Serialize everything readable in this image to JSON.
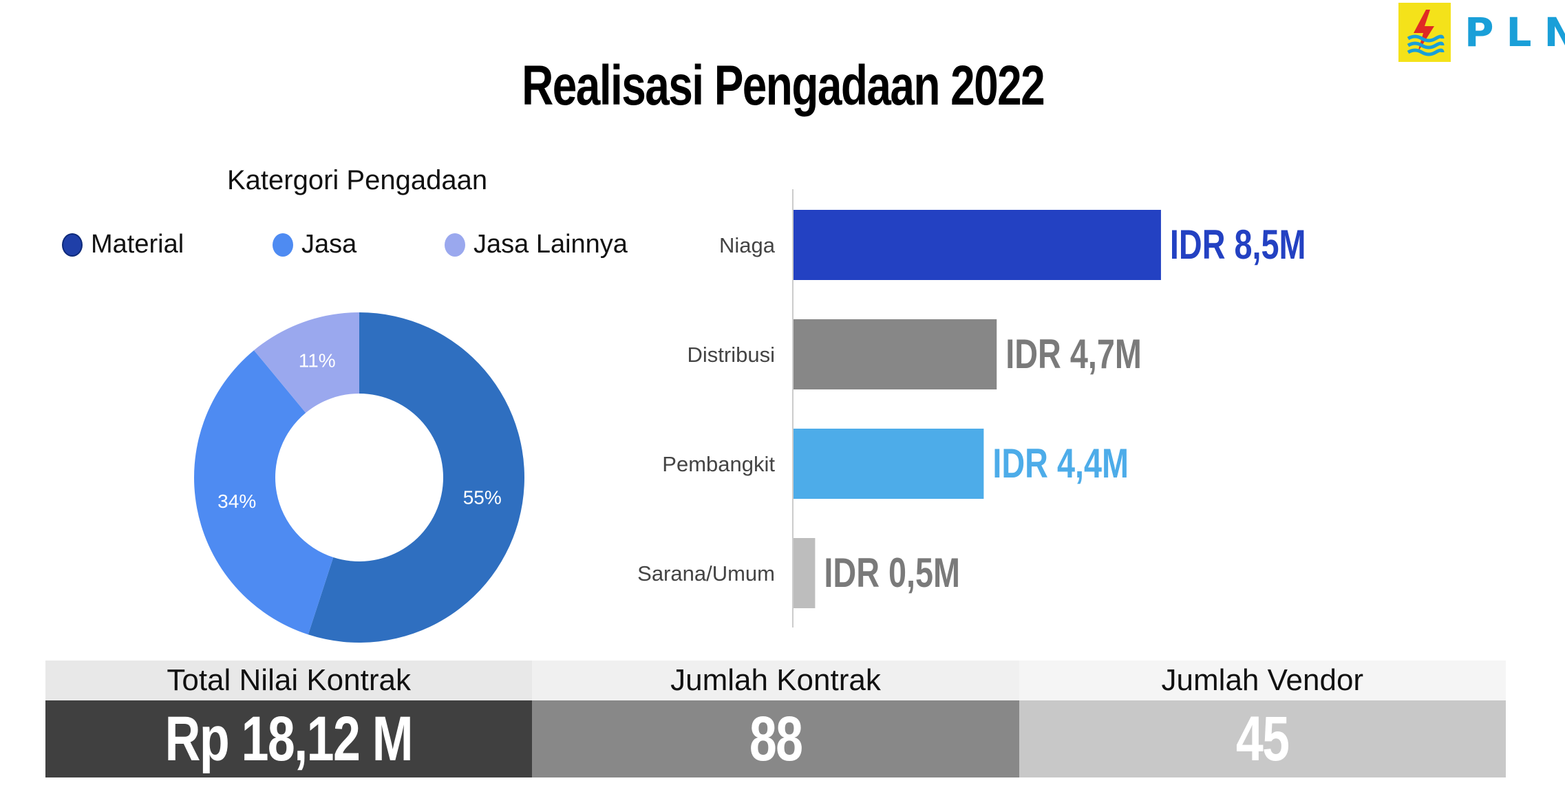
{
  "brand": {
    "logo_text": "PLN",
    "logo_bg": "#f4e21a",
    "text_color": "#1a9fd8"
  },
  "title": "Realisasi Pengadaan 2022",
  "chart_data": [
    {
      "type": "pie",
      "title": "Katergori Pengadaan",
      "legend_position": "top",
      "categories": [
        "Material",
        "Jasa",
        "Jasa Lainnya"
      ],
      "values": [
        55,
        34,
        11
      ],
      "labels": [
        "55%",
        "34%",
        "11%"
      ],
      "colors": [
        "#2f6fc0",
        "#4e8bf2",
        "#9aa8ee"
      ],
      "legend_colors": [
        "#1f3fa8",
        "#4e8bf2",
        "#9aa8ee"
      ]
    },
    {
      "type": "bar",
      "orientation": "horizontal",
      "categories": [
        "Niaga",
        "Distribusi",
        "Pembangkit",
        "Sarana/Umum"
      ],
      "values": [
        8.5,
        4.7,
        4.4,
        0.5
      ],
      "labels": [
        "IDR 8,5M",
        "IDR 4,7M",
        "IDR 4,4M",
        "IDR 0,5M"
      ],
      "colors": [
        "#2341c2",
        "#878787",
        "#4dace9",
        "#bdbdbd"
      ],
      "label_colors": [
        "#2341c2",
        "#7a7a7a",
        "#4dace9",
        "#7a7a7a"
      ],
      "xlim": [
        0,
        13.5
      ]
    }
  ],
  "stats": [
    {
      "label": "Total Nilai Kontrak",
      "value": "Rp 18,12 M",
      "head_bg": "#e8e8e8",
      "val_bg": "#404040"
    },
    {
      "label": "Jumlah Kontrak",
      "value": "88",
      "head_bg": "#f0f0f0",
      "val_bg": "#888888"
    },
    {
      "label": "Jumlah Vendor",
      "value": "45",
      "head_bg": "#f5f5f5",
      "val_bg": "#c8c8c8"
    }
  ]
}
